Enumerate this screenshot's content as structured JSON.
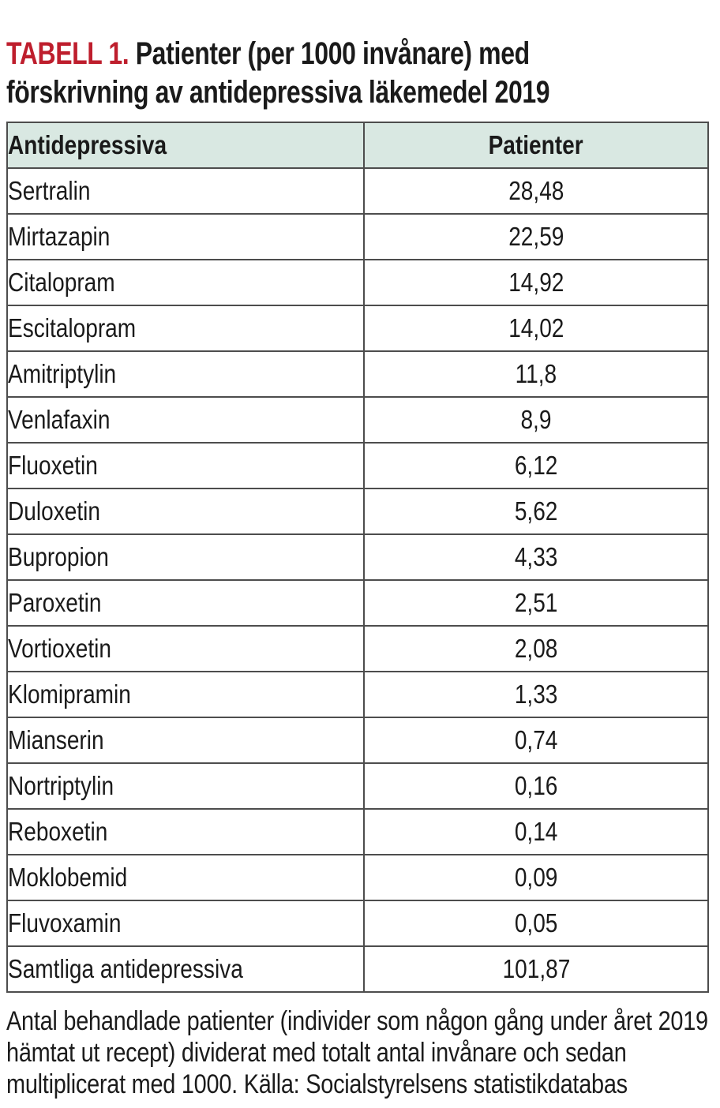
{
  "title": {
    "label": "TABELL 1.",
    "line1": " Patienter (per 1000 invånare) med",
    "line2": "förskrivning av antidepressiva läkemedel 2019"
  },
  "table": {
    "headers": [
      "Antidepressiva",
      "Patienter"
    ],
    "rows": [
      {
        "name": "Sertralin",
        "value": "28,48"
      },
      {
        "name": "Mirtazapin",
        "value": "22,59"
      },
      {
        "name": "Citalopram",
        "value": "14,92"
      },
      {
        "name": "Escitalopram",
        "value": "14,02"
      },
      {
        "name": "Amitriptylin",
        "value": "11,8"
      },
      {
        "name": "Venlafaxin",
        "value": "8,9"
      },
      {
        "name": "Fluoxetin",
        "value": "6,12"
      },
      {
        "name": "Duloxetin",
        "value": "5,62"
      },
      {
        "name": "Bupropion",
        "value": "4,33"
      },
      {
        "name": "Paroxetin",
        "value": "2,51"
      },
      {
        "name": "Vortioxetin",
        "value": "2,08"
      },
      {
        "name": "Klomipramin",
        "value": "1,33"
      },
      {
        "name": "Mianserin",
        "value": "0,74"
      },
      {
        "name": "Nortriptylin",
        "value": "0,16"
      },
      {
        "name": "Reboxetin",
        "value": "0,14"
      },
      {
        "name": "Moklobemid",
        "value": "0,09"
      },
      {
        "name": "Fluvoxamin",
        "value": "0,05"
      },
      {
        "name": "Samtliga antidepressiva",
        "value": "101,87"
      }
    ]
  },
  "footnote": "Antal behandlade patienter (individer som någon gång under året 2019 hämtat ut recept) dividerat med totalt antal invånare och sedan multiplicerat med 1000. Källa: Socialstyrelsens statistikdatabas",
  "colors": {
    "accent_red": "#BE1E2D",
    "header_green": "#D9E8E2",
    "border_gray": "#4d4d4d",
    "text": "#1a1a1a"
  }
}
